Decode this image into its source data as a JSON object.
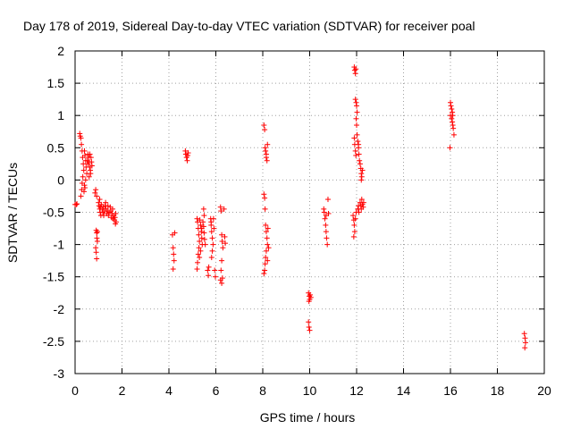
{
  "chart_data": {
    "type": "scatter",
    "title": "Day 178 of 2019, Sidereal Day-to-day VTEC variation (SDTVAR) for receiver poal",
    "xlabel": "GPS time / hours",
    "ylabel": "SDTVAR / TECUs",
    "xlim": [
      0,
      20
    ],
    "ylim": [
      -3,
      2
    ],
    "xticks": [
      0,
      2,
      4,
      6,
      8,
      10,
      12,
      14,
      16,
      18,
      20
    ],
    "yticks": [
      -3,
      -2.5,
      -2,
      -1.5,
      -1,
      -0.5,
      0,
      0.5,
      1,
      1.5,
      2
    ],
    "xtick_labels": [
      "0",
      "2",
      "4",
      "6",
      "8",
      "10",
      "12",
      "14",
      "16",
      "18",
      "20"
    ],
    "ytick_labels": [
      "-3",
      "-2.5",
      "-2",
      "-1.5",
      "-1",
      "-0.5",
      "0",
      "0.5",
      "1",
      "1.5",
      "2"
    ],
    "grid": true,
    "marker": "+",
    "marker_color": "#ff0000",
    "series": [
      {
        "name": "SDTVAR",
        "points": [
          [
            0.0,
            -0.38
          ],
          [
            0.05,
            -0.38
          ],
          [
            0.08,
            -0.37
          ],
          [
            0.2,
            0.72
          ],
          [
            0.22,
            0.68
          ],
          [
            0.25,
            0.65
          ],
          [
            0.27,
            0.55
          ],
          [
            0.3,
            0.45
          ],
          [
            0.32,
            0.35
          ],
          [
            0.35,
            0.25
          ],
          [
            0.37,
            0.15
          ],
          [
            0.33,
            0.05
          ],
          [
            0.3,
            -0.05
          ],
          [
            0.28,
            -0.15
          ],
          [
            0.25,
            -0.25
          ],
          [
            0.4,
            0.45
          ],
          [
            0.42,
            0.38
          ],
          [
            0.45,
            0.3
          ],
          [
            0.47,
            0.2
          ],
          [
            0.5,
            0.1
          ],
          [
            0.45,
            0.0
          ],
          [
            0.4,
            -0.08
          ],
          [
            0.38,
            -0.18
          ],
          [
            0.42,
            -0.12
          ],
          [
            0.55,
            0.4
          ],
          [
            0.58,
            0.35
          ],
          [
            0.6,
            0.28
          ],
          [
            0.62,
            0.2
          ],
          [
            0.65,
            0.15
          ],
          [
            0.6,
            0.05
          ],
          [
            0.55,
            0.25
          ],
          [
            0.52,
            0.3
          ],
          [
            0.68,
            0.35
          ],
          [
            0.7,
            0.28
          ],
          [
            0.72,
            0.22
          ],
          [
            0.66,
            0.1
          ],
          [
            0.63,
            0.4
          ],
          [
            0.85,
            -0.2
          ],
          [
            0.88,
            -0.15
          ],
          [
            0.92,
            -0.25
          ],
          [
            0.9,
            -0.78
          ],
          [
            0.92,
            -0.82
          ],
          [
            0.95,
            -0.8
          ],
          [
            0.93,
            -0.9
          ],
          [
            0.88,
            -1.05
          ],
          [
            0.9,
            -1.12
          ],
          [
            0.92,
            -1.22
          ],
          [
            0.95,
            -0.95
          ],
          [
            1.0,
            -0.35
          ],
          [
            1.02,
            -0.4
          ],
          [
            1.05,
            -0.45
          ],
          [
            1.07,
            -0.5
          ],
          [
            1.1,
            -0.55
          ],
          [
            1.05,
            -0.3
          ],
          [
            1.08,
            -0.42
          ],
          [
            1.12,
            -0.38
          ],
          [
            1.15,
            -0.45
          ],
          [
            1.18,
            -0.5
          ],
          [
            1.2,
            -0.42
          ],
          [
            1.22,
            -0.55
          ],
          [
            1.25,
            -0.48
          ],
          [
            1.28,
            -0.4
          ],
          [
            1.3,
            -0.35
          ],
          [
            1.32,
            -0.45
          ],
          [
            1.35,
            -0.52
          ],
          [
            1.38,
            -0.48
          ],
          [
            1.4,
            -0.4
          ],
          [
            1.42,
            -0.55
          ],
          [
            1.45,
            -0.5
          ],
          [
            1.5,
            -0.42
          ],
          [
            1.52,
            -0.48
          ],
          [
            1.55,
            -0.58
          ],
          [
            1.58,
            -0.52
          ],
          [
            1.6,
            -0.45
          ],
          [
            1.62,
            -0.6
          ],
          [
            1.65,
            -0.55
          ],
          [
            1.68,
            -0.62
          ],
          [
            1.7,
            -0.58
          ],
          [
            1.72,
            -0.68
          ],
          [
            1.75,
            -0.65
          ],
          [
            1.73,
            -0.52
          ],
          [
            4.15,
            -0.85
          ],
          [
            4.18,
            -1.05
          ],
          [
            4.2,
            -1.15
          ],
          [
            4.22,
            -1.25
          ],
          [
            4.18,
            -1.38
          ],
          [
            4.25,
            -0.82
          ],
          [
            4.7,
            0.45
          ],
          [
            4.72,
            0.4
          ],
          [
            4.75,
            0.35
          ],
          [
            4.78,
            0.3
          ],
          [
            4.8,
            0.38
          ],
          [
            4.82,
            0.42
          ],
          [
            5.2,
            -0.6
          ],
          [
            5.22,
            -0.65
          ],
          [
            5.25,
            -0.75
          ],
          [
            5.27,
            -0.85
          ],
          [
            5.3,
            -0.95
          ],
          [
            5.28,
            -1.05
          ],
          [
            5.25,
            -1.15
          ],
          [
            5.22,
            -1.28
          ],
          [
            5.2,
            -1.38
          ],
          [
            5.32,
            -0.62
          ],
          [
            5.35,
            -0.7
          ],
          [
            5.38,
            -0.8
          ],
          [
            5.4,
            -0.9
          ],
          [
            5.42,
            -1.0
          ],
          [
            5.4,
            -0.75
          ],
          [
            5.35,
            -1.1
          ],
          [
            5.3,
            -1.2
          ],
          [
            5.45,
            -0.65
          ],
          [
            5.48,
            -0.72
          ],
          [
            5.5,
            -0.82
          ],
          [
            5.52,
            -0.92
          ],
          [
            5.55,
            -1.0
          ],
          [
            5.5,
            -0.55
          ],
          [
            5.48,
            -0.45
          ],
          [
            5.65,
            -1.4
          ],
          [
            5.68,
            -1.48
          ],
          [
            5.7,
            -1.35
          ],
          [
            5.78,
            -0.6
          ],
          [
            5.8,
            -0.7
          ],
          [
            5.82,
            -0.8
          ],
          [
            5.85,
            -0.9
          ],
          [
            5.88,
            -1.0
          ],
          [
            5.85,
            -1.1
          ],
          [
            5.82,
            -1.2
          ],
          [
            5.8,
            -0.65
          ],
          [
            5.9,
            -0.6
          ],
          [
            5.92,
            -0.75
          ],
          [
            5.95,
            -1.4
          ],
          [
            5.98,
            -1.5
          ],
          [
            6.2,
            -0.42
          ],
          [
            6.22,
            -0.48
          ],
          [
            6.25,
            -0.85
          ],
          [
            6.27,
            -0.95
          ],
          [
            6.3,
            -1.05
          ],
          [
            6.25,
            -1.25
          ],
          [
            6.22,
            -1.4
          ],
          [
            6.2,
            -1.55
          ],
          [
            6.25,
            -1.6
          ],
          [
            6.28,
            -1.52
          ],
          [
            6.35,
            -0.45
          ],
          [
            6.38,
            -0.88
          ],
          [
            6.4,
            -0.98
          ],
          [
            8.05,
            0.85
          ],
          [
            8.08,
            0.78
          ],
          [
            8.1,
            0.5
          ],
          [
            8.12,
            0.45
          ],
          [
            8.15,
            0.4
          ],
          [
            8.18,
            0.3
          ],
          [
            8.2,
            0.55
          ],
          [
            8.15,
            0.35
          ],
          [
            8.05,
            -0.22
          ],
          [
            8.08,
            -0.28
          ],
          [
            8.1,
            -0.45
          ],
          [
            8.12,
            -0.7
          ],
          [
            8.15,
            -0.8
          ],
          [
            8.18,
            -0.9
          ],
          [
            8.2,
            -1.0
          ],
          [
            8.15,
            -1.1
          ],
          [
            8.12,
            -1.2
          ],
          [
            8.1,
            -1.3
          ],
          [
            8.08,
            -1.4
          ],
          [
            8.05,
            -1.45
          ],
          [
            8.2,
            -1.25
          ],
          [
            8.22,
            -0.75
          ],
          [
            8.25,
            -1.05
          ],
          [
            9.95,
            -1.75
          ],
          [
            9.98,
            -1.8
          ],
          [
            10.0,
            -1.85
          ],
          [
            10.02,
            -1.78
          ],
          [
            9.97,
            -1.88
          ],
          [
            10.05,
            -1.82
          ],
          [
            9.95,
            -2.2
          ],
          [
            9.97,
            -2.28
          ],
          [
            10.0,
            -2.33
          ],
          [
            10.6,
            -0.45
          ],
          [
            10.62,
            -0.5
          ],
          [
            10.65,
            -0.6
          ],
          [
            10.68,
            -0.7
          ],
          [
            10.7,
            -0.8
          ],
          [
            10.72,
            -0.9
          ],
          [
            10.75,
            -1.0
          ],
          [
            10.7,
            -0.55
          ],
          [
            10.78,
            -0.3
          ],
          [
            10.8,
            -0.52
          ],
          [
            11.9,
            1.75
          ],
          [
            11.92,
            1.7
          ],
          [
            11.95,
            1.65
          ],
          [
            11.97,
            1.72
          ],
          [
            11.95,
            1.25
          ],
          [
            11.98,
            1.2
          ],
          [
            12.0,
            1.15
          ],
          [
            12.02,
            1.05
          ],
          [
            11.98,
            0.95
          ],
          [
            12.0,
            0.85
          ],
          [
            12.02,
            0.7
          ],
          [
            12.05,
            0.6
          ],
          [
            12.08,
            0.5
          ],
          [
            12.1,
            0.4
          ],
          [
            12.12,
            0.3
          ],
          [
            12.08,
            0.55
          ],
          [
            11.9,
            0.65
          ],
          [
            11.92,
            0.55
          ],
          [
            11.95,
            0.45
          ],
          [
            11.97,
            0.38
          ],
          [
            12.15,
            0.25
          ],
          [
            12.18,
            0.18
          ],
          [
            12.2,
            0.1
          ],
          [
            12.22,
            0.05
          ],
          [
            12.25,
            0.15
          ],
          [
            12.2,
            0.0
          ],
          [
            11.85,
            -0.55
          ],
          [
            11.88,
            -0.62
          ],
          [
            11.9,
            -0.7
          ],
          [
            11.92,
            -0.8
          ],
          [
            11.88,
            -0.88
          ],
          [
            11.95,
            -0.6
          ],
          [
            11.98,
            -0.5
          ],
          [
            12.05,
            -0.45
          ],
          [
            12.08,
            -0.4
          ],
          [
            12.1,
            -0.5
          ],
          [
            12.15,
            -0.35
          ],
          [
            12.18,
            -0.4
          ],
          [
            12.2,
            -0.45
          ],
          [
            12.22,
            -0.3
          ],
          [
            12.25,
            -0.38
          ],
          [
            12.28,
            -0.42
          ],
          [
            12.3,
            -0.35
          ],
          [
            16.0,
            1.2
          ],
          [
            16.02,
            1.15
          ],
          [
            16.05,
            1.1
          ],
          [
            16.08,
            1.05
          ],
          [
            16.1,
            1.0
          ],
          [
            16.05,
            0.95
          ],
          [
            16.08,
            0.9
          ],
          [
            16.1,
            0.85
          ],
          [
            16.12,
            0.8
          ],
          [
            16.15,
            0.7
          ],
          [
            15.98,
            0.5
          ],
          [
            16.0,
            1.0
          ],
          [
            19.15,
            -2.38
          ],
          [
            19.18,
            -2.45
          ],
          [
            19.2,
            -2.52
          ],
          [
            19.17,
            -2.6
          ]
        ]
      }
    ]
  }
}
